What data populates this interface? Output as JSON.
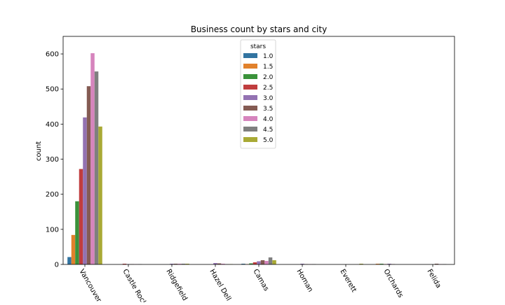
{
  "chart_data": {
    "type": "bar",
    "title": "Business count by stars and city",
    "xlabel": "",
    "ylabel": "count",
    "ylim": [
      0,
      650
    ],
    "yticks": [
      0,
      100,
      200,
      300,
      400,
      500,
      600
    ],
    "categories": [
      "Vancouver",
      "Castle Rock",
      "Ridgefield",
      "Hazel Dell",
      "Camas",
      "Homan",
      "Everett",
      "Orchards",
      "Felida"
    ],
    "legend": {
      "title": "stars",
      "placement": "top-center"
    },
    "grid": false,
    "series": [
      {
        "name": "1.0",
        "color": "#3274a1",
        "values": [
          21,
          0,
          0,
          0,
          2,
          0,
          0,
          0,
          0
        ]
      },
      {
        "name": "1.5",
        "color": "#e1812c",
        "values": [
          84,
          0,
          0,
          0,
          1,
          0,
          0,
          2,
          0
        ]
      },
      {
        "name": "2.0",
        "color": "#3a923a",
        "values": [
          180,
          0,
          0,
          0,
          3,
          0,
          0,
          2,
          0
        ]
      },
      {
        "name": "2.5",
        "color": "#c03d3e",
        "values": [
          272,
          2,
          0,
          0,
          6,
          0,
          0,
          1,
          0
        ]
      },
      {
        "name": "3.0",
        "color": "#9372b2",
        "values": [
          419,
          1,
          2,
          4,
          9,
          2,
          0,
          2,
          0
        ]
      },
      {
        "name": "3.5",
        "color": "#845b53",
        "values": [
          508,
          1,
          2,
          3,
          12,
          1,
          0,
          1,
          2
        ]
      },
      {
        "name": "4.0",
        "color": "#d684bd",
        "values": [
          602,
          1,
          2,
          2,
          10,
          1,
          0,
          0,
          1
        ]
      },
      {
        "name": "4.5",
        "color": "#7f7f7f",
        "values": [
          550,
          1,
          2,
          1,
          20,
          1,
          0,
          0,
          1
        ]
      },
      {
        "name": "5.0",
        "color": "#a9aa35",
        "values": [
          393,
          0,
          2,
          1,
          12,
          0,
          2,
          0,
          0
        ]
      }
    ]
  }
}
